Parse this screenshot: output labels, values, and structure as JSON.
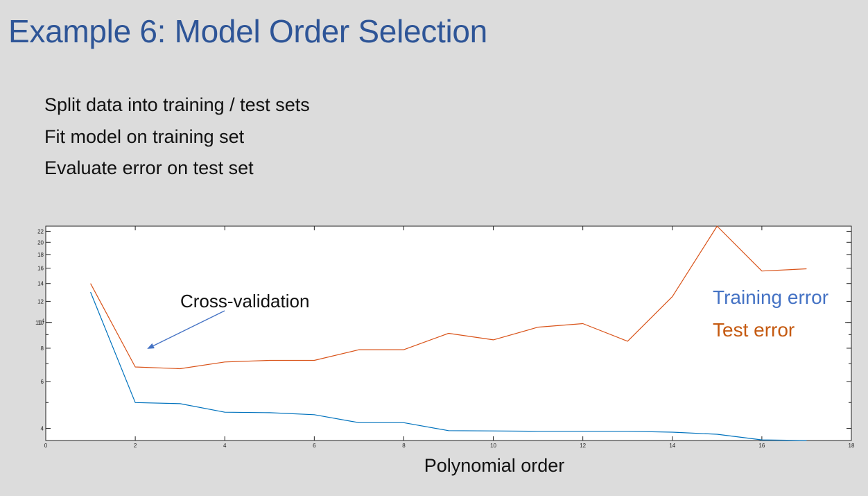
{
  "slide": {
    "title": "Example 6: Model Order Selection",
    "bullets": [
      "Split data into training / test sets",
      "Fit model on training set",
      "Evaluate error on test set"
    ]
  },
  "chart_data": {
    "type": "line",
    "xlabel": "Polynomial order",
    "ylabel": "",
    "xlim": [
      0,
      18
    ],
    "ylim": [
      3.6,
      23
    ],
    "yscale": "log",
    "x_ticks": [
      0,
      2,
      4,
      6,
      8,
      10,
      12,
      14,
      16,
      18
    ],
    "y_tick_labels": [
      {
        "value": 4,
        "label": "4"
      },
      {
        "value": 6,
        "label": "6"
      },
      {
        "value": 8,
        "label": "8"
      },
      {
        "value": 10,
        "label": "10"
      },
      {
        "value": 12,
        "label": "12"
      },
      {
        "value": 14,
        "label": "14"
      },
      {
        "value": 16,
        "label": "16"
      },
      {
        "value": 18,
        "label": "18"
      },
      {
        "value": 20,
        "label": "20"
      },
      {
        "value": 22,
        "label": "22"
      }
    ],
    "y_decade_label": {
      "value": 10,
      "base": "10",
      "exp": "1"
    },
    "y_minor_ticks": [
      5,
      7,
      9
    ],
    "grid": false,
    "x": [
      1,
      2,
      3,
      4,
      5,
      6,
      7,
      8,
      9,
      10,
      11,
      12,
      13,
      14,
      15,
      16,
      17
    ],
    "series": [
      {
        "name": "Training error",
        "color": "#0072bd",
        "legend_color": "#4472c4",
        "values": [
          13.0,
          5.0,
          4.95,
          4.6,
          4.58,
          4.5,
          4.2,
          4.2,
          3.92,
          3.91,
          3.9,
          3.9,
          3.9,
          3.87,
          3.8,
          3.62,
          3.6
        ]
      },
      {
        "name": "Test error",
        "color": "#d95319",
        "legend_color": "#c55a11",
        "values": [
          14.0,
          6.8,
          6.7,
          7.1,
          7.2,
          7.2,
          7.9,
          7.9,
          9.1,
          8.6,
          9.6,
          9.9,
          8.5,
          12.5,
          23.0,
          15.6,
          15.9
        ]
      }
    ],
    "annotations": [
      {
        "text": "Cross-validation",
        "arrow": true
      }
    ],
    "legend_position": "right"
  }
}
